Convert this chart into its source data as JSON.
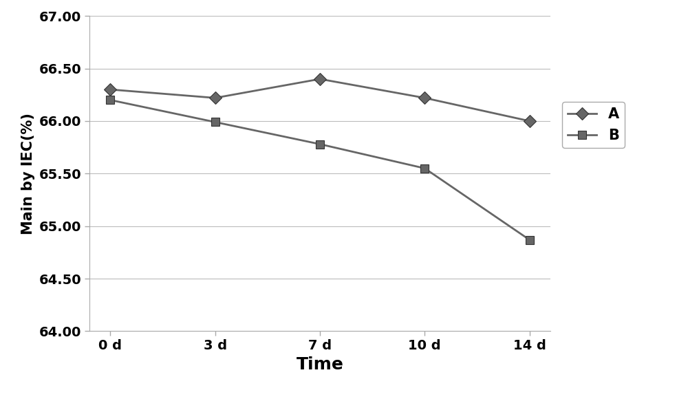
{
  "x_labels": [
    "0 d",
    "3 d",
    "7 d",
    "10 d",
    "14 d"
  ],
  "x_values": [
    0,
    1,
    2,
    3,
    4
  ],
  "series_A": [
    66.3,
    66.22,
    66.4,
    66.22,
    66.0
  ],
  "series_B": [
    66.2,
    65.99,
    65.78,
    65.55,
    64.87
  ],
  "line_color": "#666666",
  "marker_color": "#666666",
  "ylabel": "Main by IEC(%)",
  "xlabel": "Time",
  "ylim": [
    64.0,
    67.0
  ],
  "yticks": [
    64.0,
    64.5,
    65.0,
    65.5,
    66.0,
    66.5,
    67.0
  ],
  "legend_A": "A",
  "legend_B": "B",
  "ylabel_fontsize": 15,
  "xlabel_fontsize": 18,
  "tick_fontsize": 14,
  "legend_fontsize": 15,
  "background_color": "#ffffff",
  "grid_color": "#bbbbbb"
}
